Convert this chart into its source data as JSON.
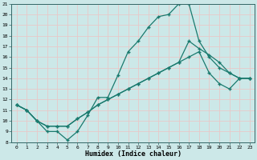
{
  "xlabel": "Humidex (Indice chaleur)",
  "xlim": [
    -0.5,
    23.5
  ],
  "ylim": [
    8,
    21
  ],
  "xticks": [
    0,
    1,
    2,
    3,
    4,
    5,
    6,
    7,
    8,
    9,
    10,
    11,
    12,
    13,
    14,
    15,
    16,
    17,
    18,
    19,
    20,
    21,
    22,
    23
  ],
  "yticks": [
    8,
    9,
    10,
    11,
    12,
    13,
    14,
    15,
    16,
    17,
    18,
    19,
    20,
    21
  ],
  "bg_color": "#cce8e8",
  "grid_color": "#b0d8d8",
  "line_color": "#1a7a6e",
  "series": [
    {
      "x": [
        0,
        1,
        2,
        3,
        4,
        5,
        6,
        7,
        8,
        9,
        10,
        11,
        12,
        13,
        14,
        15,
        16,
        17,
        18,
        19,
        20,
        21,
        22,
        23
      ],
      "y": [
        11.5,
        11.0,
        10.0,
        9.0,
        9.0,
        8.2,
        9.0,
        10.5,
        12.2,
        12.2,
        14.3,
        16.5,
        17.5,
        18.8,
        19.8,
        20.0,
        21.0,
        21.0,
        17.5,
        16.0,
        15.0,
        14.5,
        14.0,
        14.0
      ]
    },
    {
      "x": [
        0,
        1,
        2,
        3,
        4,
        5,
        6,
        7,
        8,
        9,
        10,
        11,
        12,
        13,
        14,
        15,
        16,
        17,
        18,
        19,
        20,
        21,
        22,
        23
      ],
      "y": [
        11.5,
        11.0,
        10.0,
        9.5,
        9.5,
        9.5,
        10.2,
        10.8,
        11.5,
        12.0,
        12.5,
        13.0,
        13.5,
        14.0,
        14.5,
        15.0,
        15.5,
        17.5,
        16.8,
        16.2,
        15.5,
        14.5,
        14.0,
        14.0
      ]
    },
    {
      "x": [
        0,
        1,
        2,
        3,
        4,
        5,
        6,
        7,
        8,
        9,
        10,
        11,
        12,
        13,
        14,
        15,
        16,
        17,
        18,
        19,
        20,
        21,
        22,
        23
      ],
      "y": [
        11.5,
        11.0,
        10.0,
        9.5,
        9.5,
        9.5,
        10.2,
        10.8,
        11.5,
        12.0,
        12.5,
        13.0,
        13.5,
        14.0,
        14.5,
        15.0,
        15.5,
        16.0,
        16.5,
        14.5,
        13.5,
        13.0,
        14.0,
        14.0
      ]
    }
  ]
}
